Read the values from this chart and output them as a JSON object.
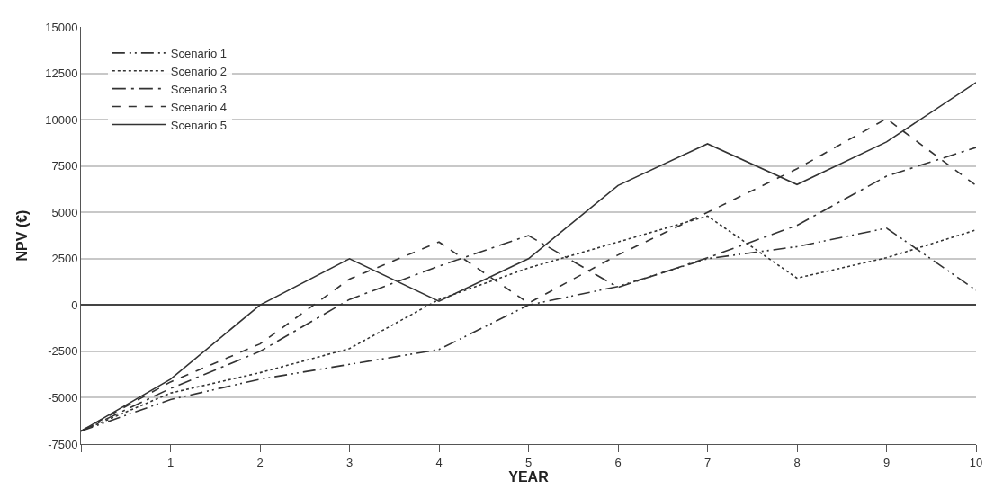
{
  "chart_data": {
    "type": "line",
    "xlabel": "YEAR",
    "ylabel": "NPV (€)",
    "x": [
      0,
      1,
      2,
      3,
      4,
      5,
      6,
      7,
      8,
      9,
      10
    ],
    "xlim": [
      0,
      10
    ],
    "xticks": [
      {
        "value": 0,
        "label": null
      },
      1,
      2,
      3,
      4,
      5,
      6,
      7,
      8,
      9,
      10
    ],
    "ylim": [
      -7500,
      15000
    ],
    "yticks": [
      -7500,
      -5000,
      -2500,
      0,
      2500,
      5000,
      7500,
      10000,
      12500,
      15000
    ],
    "grid": "y",
    "legend": "top left",
    "marker": "none",
    "series": [
      {
        "name": "Scenario 1",
        "color": "#333333",
        "line_style": "dashdotdot",
        "values": [
          -6800,
          -5100,
          -4000,
          -3200,
          -2400,
          0,
          1000,
          2500,
          3150,
          4150,
          800
        ]
      },
      {
        "name": "Scenario 2",
        "color": "#333333",
        "line_style": "dotted",
        "values": [
          -6800,
          -4750,
          -3650,
          -2350,
          300,
          2000,
          3400,
          4800,
          1450,
          2550,
          4050
        ]
      },
      {
        "name": "Scenario 3",
        "color": "#333333",
        "line_style": "dashdot",
        "values": [
          -6800,
          -4500,
          -2500,
          300,
          2100,
          3750,
          950,
          2550,
          4300,
          6950,
          8500
        ]
      },
      {
        "name": "Scenario 4",
        "color": "#333333",
        "line_style": "dashed",
        "values": [
          -6800,
          -4150,
          -2100,
          1400,
          3400,
          100,
          2700,
          5000,
          7350,
          10050,
          6450
        ]
      },
      {
        "name": "Scenario 5",
        "color": "#333333",
        "line_style": "solid",
        "values": [
          -6800,
          -4000,
          0,
          2500,
          200,
          2500,
          6450,
          8700,
          6500,
          8800,
          12000
        ]
      }
    ]
  }
}
